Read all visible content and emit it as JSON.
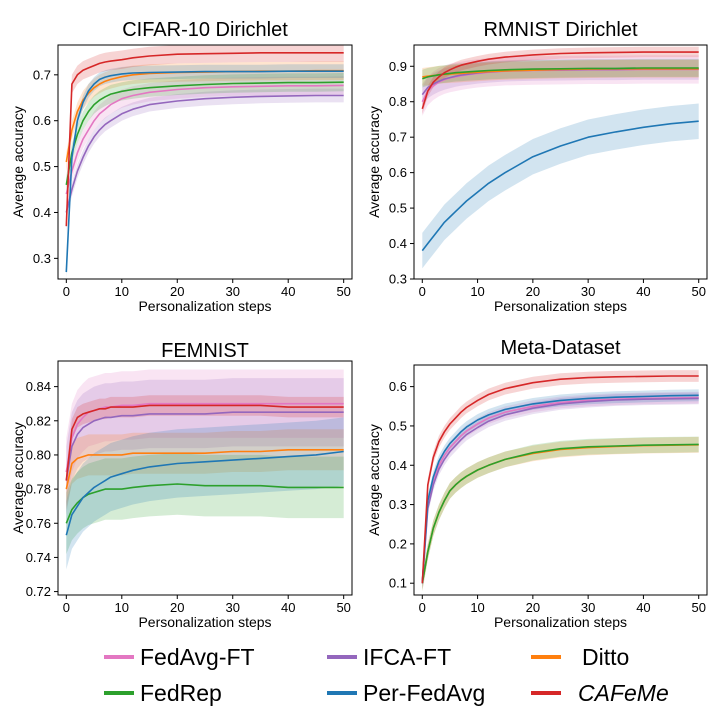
{
  "legend": [
    {
      "name": "FedAvg-FT",
      "color": "#e377c2",
      "italic": false
    },
    {
      "name": "IFCA-FT",
      "color": "#9467bd",
      "italic": false
    },
    {
      "name": "Ditto",
      "color": "#ff7f0e",
      "italic": false
    },
    {
      "name": "FedRep",
      "color": "#2ca02c",
      "italic": false
    },
    {
      "name": "Per-FedAvg",
      "color": "#1f77b4",
      "italic": false
    },
    {
      "name": "CAFeMe",
      "color": "#d62728",
      "italic": true
    }
  ],
  "chart_data": [
    {
      "type": "line",
      "title": "CIFAR-10 Dirichlet",
      "xlabel": "Personalization steps",
      "ylabel": "Average accuracy",
      "xlim": [
        -1.5,
        51.5
      ],
      "ylim": [
        0.255,
        0.765
      ],
      "xticks": [
        0,
        10,
        20,
        30,
        40,
        50
      ],
      "yticks": [
        0.3,
        0.4,
        0.5,
        0.6,
        0.7
      ],
      "ytick_labels": [
        "0.3",
        "0.4",
        "0.5",
        "0.6",
        "0.7"
      ],
      "x": [
        0,
        1,
        2,
        3,
        4,
        5,
        6,
        7,
        8,
        10,
        12,
        15,
        20,
        25,
        30,
        35,
        40,
        45,
        50
      ],
      "series": [
        {
          "name": "FedAvg-FT",
          "values": [
            0.44,
            0.49,
            0.53,
            0.56,
            0.58,
            0.6,
            0.615,
            0.625,
            0.635,
            0.648,
            0.655,
            0.662,
            0.668,
            0.672,
            0.674,
            0.675,
            0.676,
            0.676,
            0.677
          ],
          "band": 0.02
        },
        {
          "name": "IFCA-FT",
          "values": [
            0.4,
            0.45,
            0.49,
            0.52,
            0.545,
            0.565,
            0.58,
            0.592,
            0.6,
            0.615,
            0.625,
            0.635,
            0.643,
            0.648,
            0.651,
            0.653,
            0.654,
            0.655,
            0.655
          ],
          "band": 0.015
        },
        {
          "name": "Ditto",
          "values": [
            0.51,
            0.58,
            0.62,
            0.645,
            0.66,
            0.672,
            0.68,
            0.686,
            0.69,
            0.696,
            0.7,
            0.703,
            0.705,
            0.706,
            0.707,
            0.708,
            0.708,
            0.709,
            0.709
          ],
          "band": 0.02
        },
        {
          "name": "FedRep",
          "values": [
            0.46,
            0.53,
            0.57,
            0.6,
            0.62,
            0.635,
            0.645,
            0.652,
            0.658,
            0.664,
            0.668,
            0.672,
            0.676,
            0.679,
            0.681,
            0.682,
            0.683,
            0.683,
            0.684
          ],
          "band": 0.02
        },
        {
          "name": "Per-FedAvg",
          "values": [
            0.27,
            0.52,
            0.6,
            0.64,
            0.665,
            0.68,
            0.69,
            0.695,
            0.698,
            0.702,
            0.704,
            0.705,
            0.706,
            0.707,
            0.707,
            0.707,
            0.708,
            0.708,
            0.708
          ],
          "band": 0.015
        },
        {
          "name": "CAFeMe",
          "values": [
            0.37,
            0.68,
            0.7,
            0.71,
            0.715,
            0.72,
            0.725,
            0.728,
            0.73,
            0.733,
            0.737,
            0.741,
            0.745,
            0.746,
            0.747,
            0.748,
            0.748,
            0.748,
            0.748
          ],
          "band": 0.02
        }
      ]
    },
    {
      "type": "line",
      "title": "RMNIST Dirichlet",
      "xlabel": "Personalization steps",
      "ylabel": "Average accuracy",
      "xlim": [
        -1.5,
        51.5
      ],
      "ylim": [
        0.3,
        0.96
      ],
      "xticks": [
        0,
        10,
        20,
        30,
        40,
        50
      ],
      "yticks": [
        0.3,
        0.4,
        0.5,
        0.6,
        0.7,
        0.8,
        0.9
      ],
      "ytick_labels": [
        "0.3",
        "0.4",
        "0.5",
        "0.6",
        "0.7",
        "0.8",
        "0.9"
      ],
      "x": [
        0,
        1,
        2,
        3,
        4,
        5,
        6,
        7,
        8,
        10,
        12,
        15,
        20,
        25,
        30,
        35,
        40,
        45,
        50
      ],
      "series": [
        {
          "name": "FedAvg-FT",
          "values": [
            0.8,
            0.83,
            0.845,
            0.855,
            0.862,
            0.867,
            0.87,
            0.873,
            0.876,
            0.88,
            0.883,
            0.886,
            0.888,
            0.889,
            0.89,
            0.89,
            0.891,
            0.891,
            0.891
          ],
          "band": 0.04
        },
        {
          "name": "IFCA-FT",
          "values": [
            0.82,
            0.84,
            0.85,
            0.858,
            0.864,
            0.868,
            0.872,
            0.875,
            0.877,
            0.881,
            0.884,
            0.887,
            0.889,
            0.89,
            0.891,
            0.891,
            0.892,
            0.892,
            0.892
          ],
          "band": 0.03
        },
        {
          "name": "Ditto",
          "values": [
            0.87,
            0.872,
            0.874,
            0.876,
            0.877,
            0.878,
            0.879,
            0.88,
            0.881,
            0.883,
            0.885,
            0.887,
            0.889,
            0.891,
            0.892,
            0.893,
            0.893,
            0.893,
            0.893
          ],
          "band": 0.025
        },
        {
          "name": "FedRep",
          "values": [
            0.865,
            0.87,
            0.873,
            0.876,
            0.878,
            0.88,
            0.882,
            0.883,
            0.884,
            0.886,
            0.888,
            0.89,
            0.892,
            0.893,
            0.894,
            0.894,
            0.895,
            0.895,
            0.895
          ],
          "band": 0.025
        },
        {
          "name": "Per-FedAvg",
          "values": [
            0.38,
            0.4,
            0.42,
            0.44,
            0.46,
            0.475,
            0.49,
            0.505,
            0.52,
            0.545,
            0.57,
            0.6,
            0.645,
            0.675,
            0.7,
            0.715,
            0.728,
            0.738,
            0.745
          ],
          "band": 0.05
        },
        {
          "name": "CAFeMe",
          "values": [
            0.78,
            0.83,
            0.855,
            0.87,
            0.882,
            0.89,
            0.897,
            0.903,
            0.907,
            0.914,
            0.92,
            0.926,
            0.932,
            0.936,
            0.938,
            0.939,
            0.94,
            0.94,
            0.94
          ],
          "band": 0.015
        }
      ]
    },
    {
      "type": "line",
      "title": "FEMNIST",
      "xlabel": "Personalization steps",
      "ylabel": "Average accuracy",
      "xlim": [
        -1.5,
        51.5
      ],
      "ylim": [
        0.718,
        0.855
      ],
      "xticks": [
        0,
        10,
        20,
        30,
        40,
        50
      ],
      "yticks": [
        0.72,
        0.74,
        0.76,
        0.78,
        0.8,
        0.82,
        0.84
      ],
      "ytick_labels": [
        "0.72",
        "0.74",
        "0.76",
        "0.78",
        "0.80",
        "0.82",
        "0.84"
      ],
      "x": [
        0,
        1,
        2,
        3,
        4,
        5,
        6,
        7,
        8,
        10,
        12,
        15,
        20,
        25,
        30,
        35,
        40,
        45,
        50
      ],
      "series": [
        {
          "name": "FedAvg-FT",
          "values": [
            0.79,
            0.81,
            0.818,
            0.822,
            0.825,
            0.826,
            0.827,
            0.828,
            0.828,
            0.829,
            0.829,
            0.83,
            0.83,
            0.83,
            0.83,
            0.83,
            0.83,
            0.83,
            0.83
          ],
          "band": 0.02
        },
        {
          "name": "IFCA-FT",
          "values": [
            0.785,
            0.805,
            0.812,
            0.816,
            0.818,
            0.82,
            0.821,
            0.822,
            0.822,
            0.823,
            0.823,
            0.824,
            0.824,
            0.824,
            0.825,
            0.825,
            0.825,
            0.825,
            0.825
          ],
          "band": 0.02
        },
        {
          "name": "Ditto",
          "values": [
            0.78,
            0.795,
            0.798,
            0.799,
            0.8,
            0.8,
            0.8,
            0.8,
            0.8,
            0.8,
            0.801,
            0.801,
            0.801,
            0.801,
            0.802,
            0.802,
            0.803,
            0.803,
            0.803
          ],
          "band": 0.012
        },
        {
          "name": "FedRep",
          "values": [
            0.76,
            0.768,
            0.772,
            0.775,
            0.777,
            0.778,
            0.779,
            0.78,
            0.78,
            0.78,
            0.781,
            0.782,
            0.783,
            0.782,
            0.782,
            0.782,
            0.781,
            0.781,
            0.781
          ],
          "band": 0.018
        },
        {
          "name": "Per-FedAvg",
          "values": [
            0.753,
            0.765,
            0.77,
            0.775,
            0.778,
            0.781,
            0.783,
            0.785,
            0.787,
            0.789,
            0.791,
            0.793,
            0.795,
            0.796,
            0.797,
            0.798,
            0.799,
            0.8,
            0.802
          ],
          "band": 0.02
        },
        {
          "name": "CAFeMe",
          "values": [
            0.785,
            0.815,
            0.822,
            0.824,
            0.825,
            0.826,
            0.827,
            0.827,
            0.828,
            0.828,
            0.828,
            0.829,
            0.829,
            0.829,
            0.829,
            0.829,
            0.828,
            0.828,
            0.828
          ],
          "band": 0.006
        }
      ]
    },
    {
      "type": "line",
      "title": "Meta-Dataset",
      "xlabel": "Personalization steps",
      "ylabel": "Average accuracy",
      "xlim": [
        -1.5,
        51.5
      ],
      "ylim": [
        0.07,
        0.655
      ],
      "xticks": [
        0,
        10,
        20,
        30,
        40,
        50
      ],
      "yticks": [
        0.1,
        0.2,
        0.3,
        0.4,
        0.5,
        0.6
      ],
      "ytick_labels": [
        "0.1",
        "0.2",
        "0.3",
        "0.4",
        "0.5",
        "0.6"
      ],
      "x": [
        0,
        1,
        2,
        3,
        4,
        5,
        6,
        7,
        8,
        10,
        12,
        15,
        20,
        25,
        30,
        35,
        40,
        45,
        50
      ],
      "series": [
        {
          "name": "FedAvg-FT",
          "values": [
            0.1,
            0.3,
            0.36,
            0.4,
            0.425,
            0.445,
            0.46,
            0.475,
            0.487,
            0.505,
            0.52,
            0.535,
            0.55,
            0.56,
            0.565,
            0.568,
            0.57,
            0.571,
            0.572
          ],
          "band": 0.015
        },
        {
          "name": "IFCA-FT",
          "values": [
            0.1,
            0.29,
            0.35,
            0.39,
            0.415,
            0.435,
            0.45,
            0.465,
            0.478,
            0.496,
            0.512,
            0.528,
            0.545,
            0.556,
            0.562,
            0.566,
            0.568,
            0.569,
            0.57
          ],
          "band": 0.015
        },
        {
          "name": "Ditto",
          "values": [
            0.1,
            0.18,
            0.24,
            0.28,
            0.31,
            0.335,
            0.35,
            0.362,
            0.372,
            0.388,
            0.4,
            0.415,
            0.43,
            0.44,
            0.445,
            0.448,
            0.45,
            0.451,
            0.452
          ],
          "band": 0.02
        },
        {
          "name": "FedRep",
          "values": [
            0.1,
            0.18,
            0.24,
            0.28,
            0.31,
            0.335,
            0.35,
            0.362,
            0.372,
            0.388,
            0.4,
            0.415,
            0.432,
            0.442,
            0.447,
            0.449,
            0.451,
            0.452,
            0.453
          ],
          "band": 0.02
        },
        {
          "name": "Per-FedAvg",
          "values": [
            0.1,
            0.31,
            0.37,
            0.41,
            0.435,
            0.455,
            0.47,
            0.485,
            0.497,
            0.515,
            0.528,
            0.542,
            0.556,
            0.565,
            0.57,
            0.573,
            0.575,
            0.577,
            0.578
          ],
          "band": 0.015
        },
        {
          "name": "CAFeMe",
          "values": [
            0.1,
            0.35,
            0.42,
            0.46,
            0.485,
            0.505,
            0.52,
            0.535,
            0.547,
            0.565,
            0.58,
            0.595,
            0.61,
            0.619,
            0.623,
            0.625,
            0.626,
            0.627,
            0.627
          ],
          "band": 0.015
        }
      ]
    }
  ]
}
